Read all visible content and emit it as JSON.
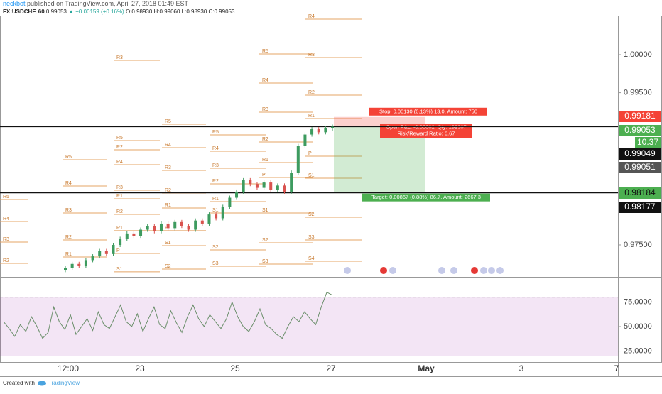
{
  "header": {
    "user": "neckbot",
    "published": "published on TradingView.com, April 27, 2018 01:49 EST",
    "symbol": "FX:USDCHF, 60",
    "last": "0.99053",
    "change": "▲ +0.00159 (+0.16%)",
    "ohlc": "O:0.98930 H:0.99060 L:0.98930 C:0.99053"
  },
  "price_pane": {
    "ylim": [
      0.9708,
      1.00513
    ],
    "yticks": [
      {
        "value": 1.0,
        "label": "1.00000"
      },
      {
        "value": 0.995,
        "label": "0.99500"
      },
      {
        "value": 0.975,
        "label": "0.97500"
      }
    ],
    "closes": [
      0.972,
      0.9725,
      0.9722,
      0.973,
      0.9735,
      0.9742,
      0.9738,
      0.975,
      0.9758,
      0.9765,
      0.9762,
      0.977,
      0.9775,
      0.9768,
      0.9778,
      0.9772,
      0.978,
      0.9775,
      0.977,
      0.9782,
      0.9778,
      0.979,
      0.9785,
      0.98,
      0.9812,
      0.982,
      0.9835,
      0.983,
      0.9825,
      0.9832,
      0.9822,
      0.9828,
      0.982,
      0.9845,
      0.988,
      0.9895,
      0.9902,
      0.9898,
      0.9903,
      0.99053
    ],
    "horizontal_lines": [
      0.99053,
      0.98184
    ],
    "pivots": [
      {
        "levels": [
          {
            "label": "R5",
            "value": 0.98097
          },
          {
            "label": "R4",
            "value": 0.97808
          },
          {
            "label": "R3",
            "value": 0.97537
          },
          {
            "label": "R2",
            "value": 0.97257
          }
        ]
      },
      {
        "levels": [
          {
            "label": "R5",
            "value": 0.98619
          },
          {
            "label": "R4",
            "value": 0.98274
          },
          {
            "label": "R3",
            "value": 0.9792
          },
          {
            "label": "R2",
            "value": 0.97565
          },
          {
            "label": "R1",
            "value": 0.97341
          }
        ]
      },
      {
        "levels": [
          {
            "label": "R3",
            "value": 0.99925
          },
          {
            "label": "R5",
            "value": 0.98871
          },
          {
            "label": "R2",
            "value": 0.9875
          },
          {
            "label": "R4",
            "value": 0.98554
          },
          {
            "label": "R3",
            "value": 0.98218
          },
          {
            "label": "R1",
            "value": 0.98106
          },
          {
            "label": "R2",
            "value": 0.97901
          },
          {
            "label": "R1",
            "value": 0.97687
          },
          {
            "label": "P",
            "value": 0.97388
          },
          {
            "label": "S1",
            "value": 0.97146
          }
        ]
      },
      {
        "levels": [
          {
            "label": "R5",
            "value": 0.99086
          },
          {
            "label": "R4",
            "value": 0.98778
          },
          {
            "label": "R3",
            "value": 0.98479
          },
          {
            "label": "R2",
            "value": 0.98181
          },
          {
            "label": "R1",
            "value": 0.97985
          },
          {
            "label": "P",
            "value": 0.97687
          },
          {
            "label": "S1",
            "value": 0.97491
          },
          {
            "label": "S2",
            "value": 0.97183
          }
        ]
      },
      {
        "levels": [
          {
            "label": "R5",
            "value": 0.98946
          },
          {
            "label": "R4",
            "value": 0.98731
          },
          {
            "label": "R3",
            "value": 0.98507
          },
          {
            "label": "R2",
            "value": 0.98302
          },
          {
            "label": "R1",
            "value": 0.98069
          },
          {
            "label": "S1",
            "value": 0.9792
          },
          {
            "label": "S2",
            "value": 0.97435
          },
          {
            "label": "S3",
            "value": 0.9722
          }
        ]
      },
      {
        "levels": [
          {
            "label": "R5",
            "value": 1.00009
          },
          {
            "label": "R4",
            "value": 0.99627
          },
          {
            "label": "R3",
            "value": 0.99244
          },
          {
            "label": "R2",
            "value": 0.98853
          },
          {
            "label": "R1",
            "value": 0.98582
          },
          {
            "label": "P",
            "value": 0.98386
          },
          {
            "label": "S1",
            "value": 0.9792
          },
          {
            "label": "S2",
            "value": 0.97528
          },
          {
            "label": "S3",
            "value": 0.97248
          }
        ]
      },
      {
        "levels": [
          {
            "label": "R4",
            "value": 1.00466
          },
          {
            "label": "R3",
            "value": 0.99963
          },
          {
            "label": "R2",
            "value": 0.99468
          },
          {
            "label": "R1",
            "value": 0.9916
          },
          {
            "label": "P",
            "value": 0.98666
          },
          {
            "label": "S1",
            "value": 0.98377
          },
          {
            "label": "S2",
            "value": 0.97864
          },
          {
            "label": "S3",
            "value": 0.97565
          },
          {
            "label": "S4",
            "value": 0.97285
          }
        ]
      }
    ],
    "position": {
      "stop": 0.99181,
      "entry": 0.99053,
      "target": 0.98184,
      "stop_label": "Stop: 0.00130 (0.13%) 13.0, Amount: 750",
      "pnl_label": "Open P&L: -0.00002, Qty: 192307",
      "ratio_label": "Risk/Reward Ratio: 6.67",
      "target_label": "Target: 0.00867 (0.88%) 86.7, Amount: 2667.3"
    },
    "axis_labels": [
      {
        "text": "0.99181",
        "kind": "stop"
      },
      {
        "text": "0.99053",
        "kind": "last"
      },
      {
        "text": "10.37",
        "kind": "timer"
      },
      {
        "text": "0.99049",
        "kind": "bid"
      },
      {
        "text": "0.99051",
        "kind": "ask"
      },
      {
        "text": "0.98184",
        "kind": "target"
      },
      {
        "text": "0.98177",
        "kind": "line"
      }
    ]
  },
  "rsi_pane": {
    "ylim": [
      13.8,
      100.7
    ],
    "band": [
      80,
      20
    ],
    "yticks": [
      {
        "value": 75,
        "label": "75.0000"
      },
      {
        "value": 50,
        "label": "50.0000"
      },
      {
        "value": 25,
        "label": "25.0000"
      }
    ],
    "values": [
      55,
      48,
      40,
      52,
      45,
      60,
      50,
      38,
      44,
      70,
      55,
      47,
      62,
      42,
      50,
      58,
      46,
      65,
      52,
      48,
      60,
      72,
      55,
      50,
      63,
      45,
      58,
      70,
      52,
      48,
      66,
      54,
      44,
      60,
      72,
      58,
      50,
      62,
      55,
      48,
      58,
      75,
      60,
      50,
      45,
      55,
      68,
      52,
      48,
      42,
      38,
      50,
      60,
      55,
      65,
      58,
      52,
      70,
      85,
      82
    ]
  },
  "x_axis": {
    "labels": [
      "12:00",
      "23",
      "25",
      "27",
      "May",
      "3",
      "7"
    ]
  },
  "footer": {
    "created": "Created with",
    "brand": "TradingView"
  }
}
